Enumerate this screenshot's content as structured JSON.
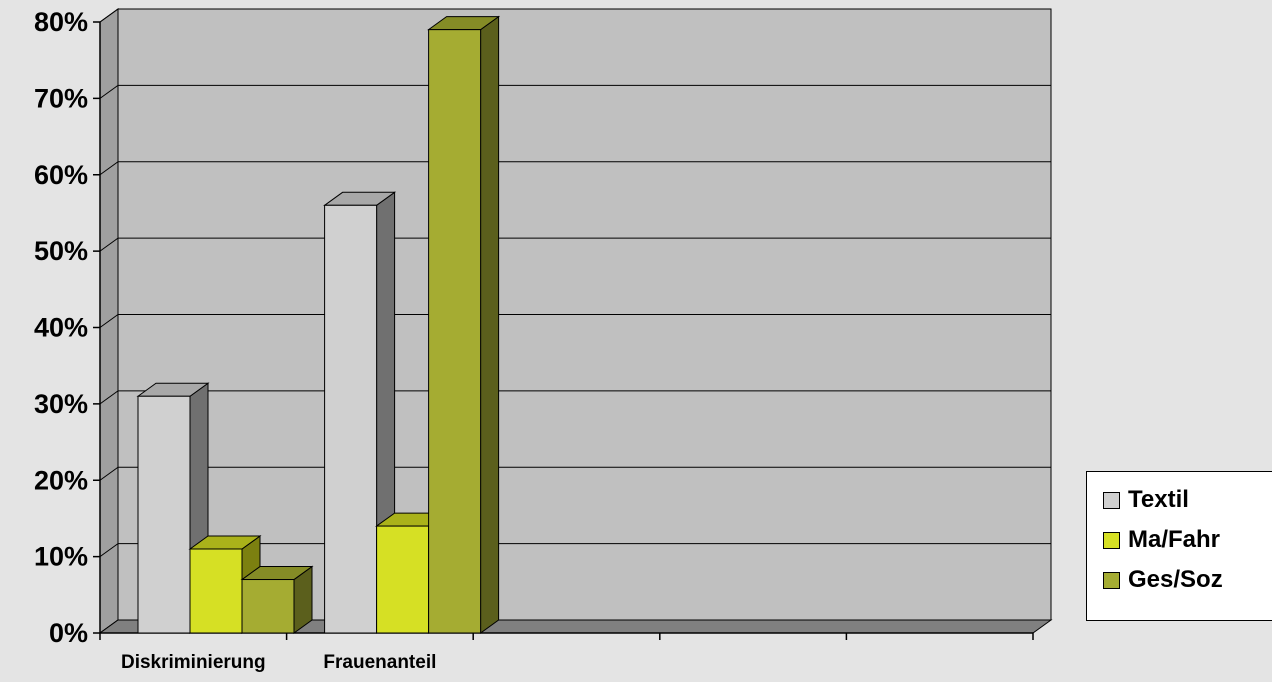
{
  "chart_data": {
    "type": "bar",
    "categories": [
      "Diskriminierung",
      "Frauenanteil",
      "",
      "",
      ""
    ],
    "series": [
      {
        "name": "Textil",
        "values": [
          31,
          56,
          null,
          null,
          null
        ],
        "color": "#d0d0d0",
        "side_color": "#707070",
        "top_color": "#a8a8a8"
      },
      {
        "name": "Ma/Fahr",
        "values": [
          11,
          14,
          null,
          null,
          null
        ],
        "color": "#d6e024",
        "side_color": "#7c8010",
        "top_color": "#aab21a"
      },
      {
        "name": "Ges/Soz",
        "values": [
          7,
          79,
          null,
          null,
          null
        ],
        "color": "#a5ac32",
        "side_color": "#5b5f1c",
        "top_color": "#858c26"
      }
    ],
    "y_ticks": [
      "0%",
      "10%",
      "20%",
      "30%",
      "40%",
      "50%",
      "60%",
      "70%",
      "80%"
    ],
    "ylim": [
      0,
      80
    ],
    "grid": true,
    "legend_position": "right",
    "style": "3d-column",
    "wall_color": "#c0c0c0",
    "floor_color": "#808080"
  }
}
